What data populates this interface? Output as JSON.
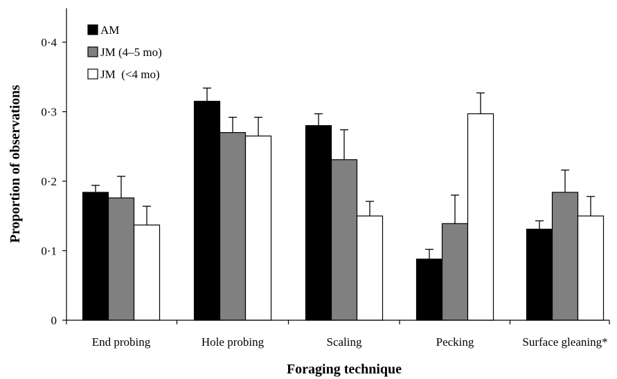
{
  "chart_data": {
    "type": "bar",
    "title": "",
    "xlabel": "Foraging technique",
    "ylabel": "Proportion of observations",
    "ylim": [
      0,
      0.4
    ],
    "yticks": [
      {
        "value": 0,
        "label": "0"
      },
      {
        "value": 0.1,
        "label": "0·1"
      },
      {
        "value": 0.2,
        "label": "0·2"
      },
      {
        "value": 0.3,
        "label": "0·3"
      },
      {
        "value": 0.4,
        "label": "0·4"
      }
    ],
    "categories": [
      "End probing",
      "Hole probing",
      "Scaling",
      "Pecking",
      "Surface gleaning*"
    ],
    "series": [
      {
        "name": "AM",
        "color": "#000000",
        "values": [
          0.184,
          0.315,
          0.28,
          0.088,
          0.131
        ],
        "errors": [
          0.01,
          0.019,
          0.017,
          0.014,
          0.012
        ]
      },
      {
        "name": "JM (4–5 mo)",
        "color": "#808080",
        "values": [
          0.176,
          0.27,
          0.231,
          0.139,
          0.184
        ],
        "errors": [
          0.031,
          0.022,
          0.043,
          0.041,
          0.032
        ]
      },
      {
        "name": "JM  (<4 mo)",
        "color": "#ffffff",
        "values": [
          0.137,
          0.265,
          0.15,
          0.297,
          0.15
        ],
        "errors": [
          0.027,
          0.027,
          0.021,
          0.03,
          0.028
        ]
      }
    ],
    "legend": {
      "position": "top-left"
    },
    "error_bars": true,
    "grid": false
  }
}
